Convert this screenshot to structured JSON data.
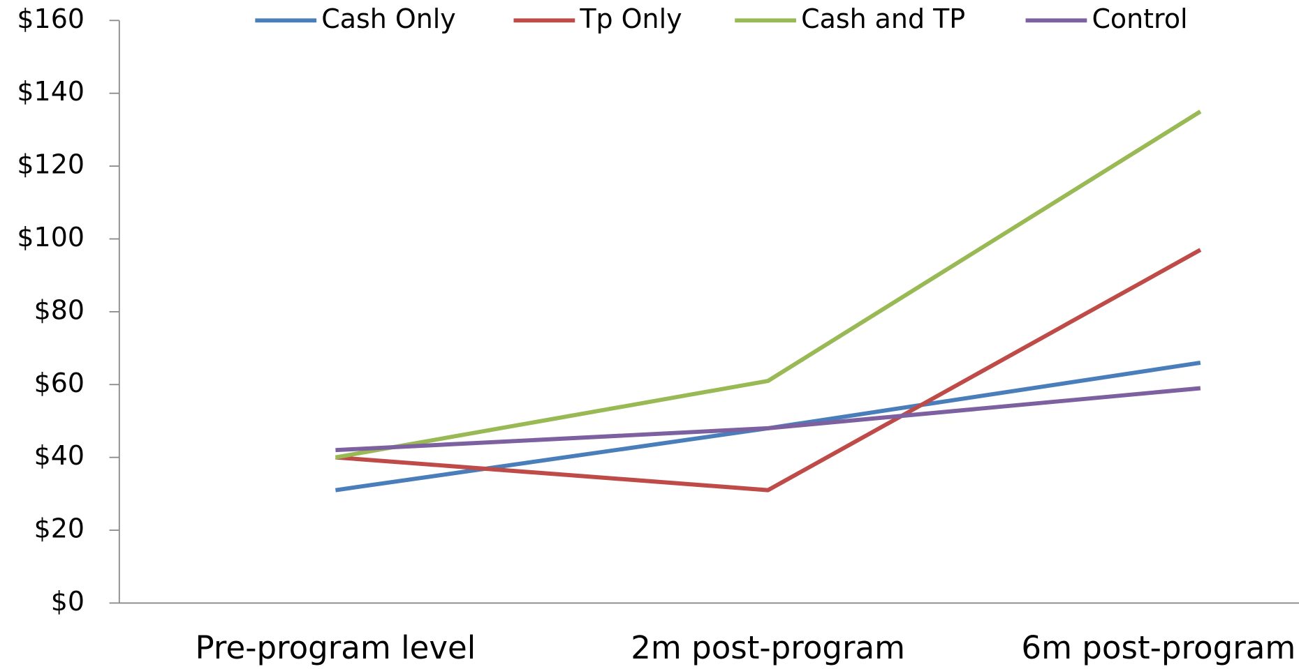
{
  "chart_data": {
    "type": "line",
    "categories": [
      "Pre-program level",
      "2m post-program",
      "6m post-program"
    ],
    "series": [
      {
        "name": "Cash Only",
        "color": "#4a7ebb",
        "values": [
          31,
          48,
          66
        ]
      },
      {
        "name": "Tp Only",
        "color": "#be4b48",
        "values": [
          40,
          31,
          97
        ]
      },
      {
        "name": "Cash and TP",
        "color": "#98b954",
        "values": [
          40,
          61,
          135
        ]
      },
      {
        "name": "Control",
        "color": "#7d60a0",
        "values": [
          42,
          48,
          59
        ]
      }
    ],
    "ylim": [
      0,
      160
    ],
    "yticks": [
      {
        "value": 0,
        "label": "$0"
      },
      {
        "value": 20,
        "label": "$20"
      },
      {
        "value": 40,
        "label": "$40"
      },
      {
        "value": 60,
        "label": "$60"
      },
      {
        "value": 80,
        "label": "$80"
      },
      {
        "value": 100,
        "label": "$100"
      },
      {
        "value": 120,
        "label": "$120"
      },
      {
        "value": 140,
        "label": "$140"
      },
      {
        "value": 160,
        "label": "$160"
      }
    ],
    "legend": "top"
  }
}
